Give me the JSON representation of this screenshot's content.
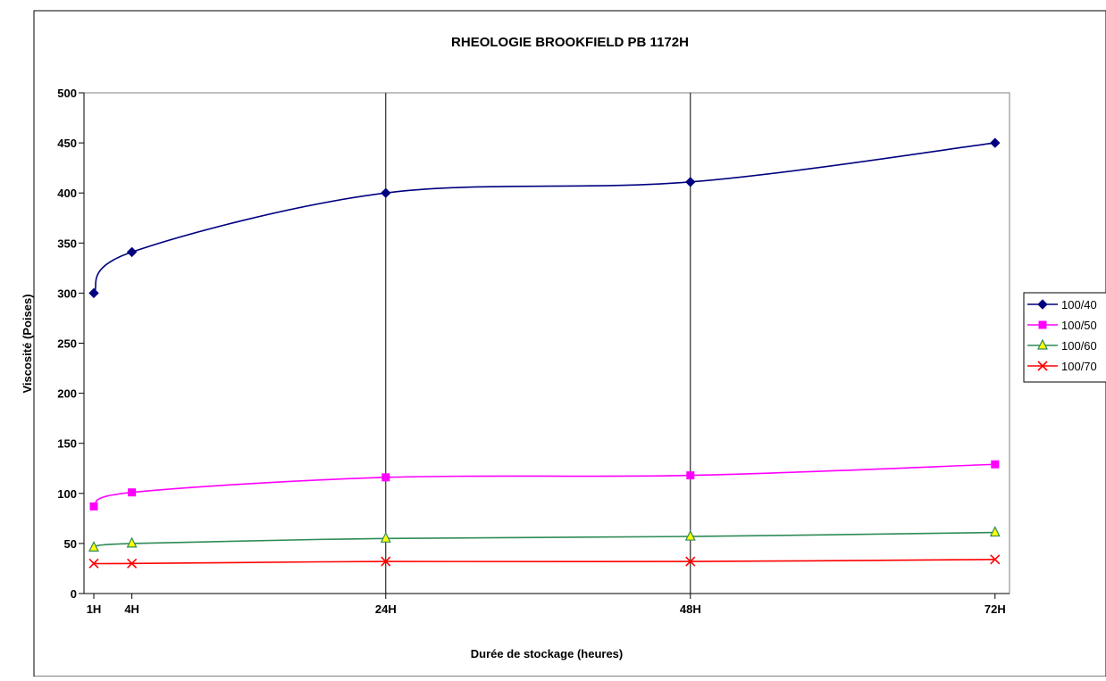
{
  "chart_data": {
    "type": "line",
    "title": "RHEOLOGIE BROOKFIELD PB 1172H",
    "xlabel": "Durée de stockage (heures)",
    "ylabel": "Viscosité (Poises)",
    "xlim": [
      0,
      72
    ],
    "ylim": [
      0,
      500
    ],
    "y_ticks": [
      0,
      50,
      100,
      150,
      200,
      250,
      300,
      350,
      400,
      450,
      500
    ],
    "x_ticks": [
      {
        "value": 0,
        "label": "1H"
      },
      {
        "value": 3,
        "label": "4H"
      },
      {
        "value": 23,
        "label": "24H"
      },
      {
        "value": 47,
        "label": "48H"
      },
      {
        "value": 71,
        "label": "72H"
      }
    ],
    "vertical_gridlines_at": [
      23,
      47
    ],
    "horizontal_gridlines": false,
    "legend_position": "right",
    "series": [
      {
        "name": "100/40",
        "color": "#000080",
        "marker": "diamond",
        "points": [
          [
            1,
            300
          ],
          [
            4,
            341
          ],
          [
            24,
            400
          ],
          [
            48,
            411
          ],
          [
            72,
            450
          ]
        ]
      },
      {
        "name": "100/50",
        "color": "#FF00FF",
        "marker": "square",
        "points": [
          [
            1,
            87
          ],
          [
            4,
            101
          ],
          [
            24,
            116
          ],
          [
            48,
            118
          ],
          [
            72,
            129
          ]
        ]
      },
      {
        "name": "100/60",
        "color": "#2E8B57",
        "marker": "triangle",
        "points": [
          [
            1,
            46
          ],
          [
            4,
            50
          ],
          [
            24,
            55
          ],
          [
            48,
            57
          ],
          [
            72,
            61
          ]
        ]
      },
      {
        "name": "100/70",
        "color": "#FF0000",
        "marker": "x",
        "points": [
          [
            1,
            30
          ],
          [
            4,
            30
          ],
          [
            24,
            32
          ],
          [
            48,
            32
          ],
          [
            72,
            34
          ]
        ]
      }
    ]
  }
}
